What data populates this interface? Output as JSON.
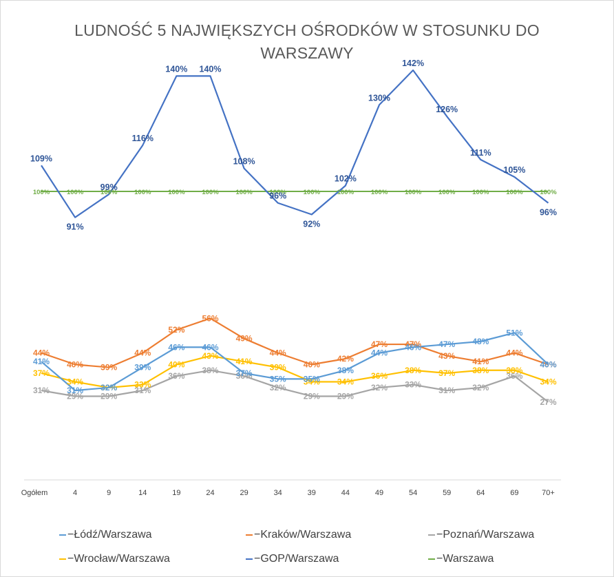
{
  "chart_data": {
    "type": "line",
    "title": "LUDNOŚĆ 5 NAJWIĘKSZYCH OŚRODKÓW W STOSUNKU DO WARSZAWY",
    "categories": [
      "Ogółem",
      "4",
      "9",
      "14",
      "19",
      "24",
      "29",
      "34",
      "39",
      "44",
      "49",
      "54",
      "59",
      "64",
      "69",
      "70+"
    ],
    "ylim": [
      0,
      150
    ],
    "grid": false,
    "legend_position": "bottom",
    "series": [
      {
        "name": "Łódź/Warszawa",
        "color": "#5b9bd5",
        "label_color": "#5b9bd5",
        "values": [
          41,
          31,
          32,
          39,
          46,
          46,
          37,
          35,
          35,
          38,
          44,
          46,
          47,
          48,
          51,
          40
        ],
        "labels": [
          "41%",
          "31%",
          "32%",
          "39%",
          "46%",
          "46%",
          "37%",
          "35%",
          "35%",
          "38%",
          "44%",
          "46%",
          "47%",
          "48%",
          "51%",
          "40%"
        ]
      },
      {
        "name": "Kraków/Warszawa",
        "color": "#ed7d31",
        "label_color": "#ed7d31",
        "values": [
          44,
          40,
          39,
          44,
          52,
          56,
          49,
          44,
          40,
          42,
          47,
          47,
          43,
          41,
          44,
          40
        ],
        "labels": [
          "44%",
          "40%",
          "39%",
          "44%",
          "52%",
          "56%",
          "49%",
          "44%",
          "40%",
          "42%",
          "47%",
          "47%",
          "43%",
          "41%",
          "44%",
          "40%"
        ]
      },
      {
        "name": "Poznań/Warszawa",
        "color": "#a5a5a5",
        "label_color": "#a5a5a5",
        "values": [
          31,
          29,
          29,
          31,
          36,
          38,
          36,
          32,
          29,
          29,
          32,
          33,
          31,
          32,
          36,
          27
        ],
        "labels": [
          "31%",
          "29%",
          "29%",
          "31%",
          "36%",
          "38%",
          "36%",
          "32%",
          "29%",
          "29%",
          "32%",
          "33%",
          "31%",
          "32%",
          "36%",
          "27%"
        ]
      },
      {
        "name": "Wrocław/Warszawa",
        "color": "#ffc000",
        "label_color": "#ffc000",
        "values": [
          37,
          34,
          32,
          33,
          40,
          43,
          41,
          39,
          34,
          34,
          36,
          38,
          37,
          38,
          38,
          34
        ],
        "labels": [
          "37%",
          "34%",
          "32%",
          "33%",
          "40%",
          "43%",
          "41%",
          "39%",
          "34%",
          "34%",
          "36%",
          "38%",
          "37%",
          "38%",
          "38%",
          "34%"
        ]
      },
      {
        "name": "GOP/Warszawa",
        "color": "#4472c4",
        "label_color": "#2f5597",
        "values": [
          109,
          91,
          99,
          116,
          140,
          140,
          108,
          96,
          92,
          102,
          130,
          142,
          126,
          111,
          105,
          96
        ],
        "labels": [
          "109%",
          "91%",
          "99%",
          "116%",
          "140%",
          "140%",
          "108%",
          "96%",
          "92%",
          "102%",
          "130%",
          "142%",
          "126%",
          "111%",
          "105%",
          "96%"
        ]
      },
      {
        "name": "Warszawa",
        "color": "#70ad47",
        "label_color": "#70ad47",
        "values": [
          100,
          100,
          100,
          100,
          100,
          100,
          100,
          100,
          100,
          100,
          100,
          100,
          100,
          100,
          100,
          100
        ],
        "labels": [
          "100%",
          "100%",
          "100%",
          "100%",
          "100%",
          "100%",
          "100%",
          "100%",
          "100%",
          "100%",
          "100%",
          "100%",
          "100%",
          "100%",
          "100%",
          "100%"
        ]
      }
    ]
  },
  "legend": {
    "dash_glyph": "−",
    "items": [
      {
        "label": "Łódź/Warszawa",
        "color": "#5b9bd5"
      },
      {
        "label": "Kraków/Warszawa",
        "color": "#ed7d31"
      },
      {
        "label": "Poznań/Warszawa",
        "color": "#a5a5a5"
      },
      {
        "label": "Wrocław/Warszawa",
        "color": "#ffc000"
      },
      {
        "label": "GOP/Warszawa",
        "color": "#4472c4"
      },
      {
        "label": "Warszawa",
        "color": "#70ad47"
      }
    ]
  }
}
